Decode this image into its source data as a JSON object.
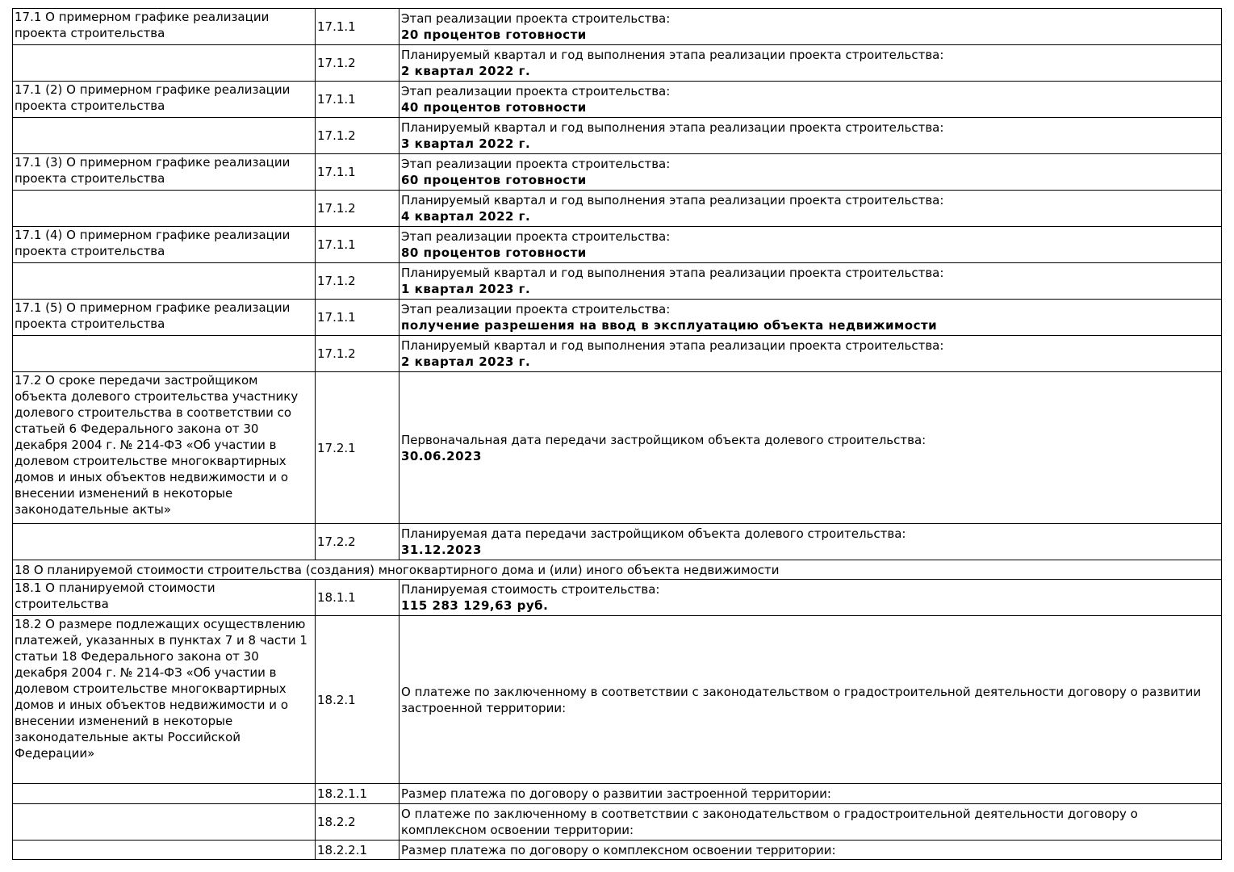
{
  "rows": [
    {
      "section": "17.1 О примерном графике реализации проекта строительства",
      "code": "17.1.1",
      "label": "Этап реализации проекта строительства:",
      "value": "20 процентов готовности"
    },
    {
      "section": "",
      "code": "17.1.2",
      "label": "Планируемый квартал и год выполнения этапа реализации проекта строительства:",
      "value": "2 квартал 2022 г."
    },
    {
      "section": "17.1 (2) О примерном графике реализации проекта строительства",
      "code": "17.1.1",
      "label": "Этап реализации проекта строительства:",
      "value": "40 процентов готовности"
    },
    {
      "section": "",
      "code": "17.1.2",
      "label": "Планируемый квартал и год выполнения этапа реализации проекта строительства:",
      "value": "3 квартал 2022 г."
    },
    {
      "section": "17.1 (3) О примерном графике реализации проекта строительства",
      "code": "17.1.1",
      "label": "Этап реализации проекта строительства:",
      "value": "60 процентов готовности"
    },
    {
      "section": "",
      "code": "17.1.2",
      "label": "Планируемый квартал и год выполнения этапа реализации проекта строительства:",
      "value": "4 квартал 2022 г."
    },
    {
      "section": "17.1 (4) О примерном графике реализации проекта строительства",
      "code": "17.1.1",
      "label": "Этап реализации проекта строительства:",
      "value": "80 процентов готовности"
    },
    {
      "section": "",
      "code": "17.1.2",
      "label": "Планируемый квартал и год выполнения этапа реализации проекта строительства:",
      "value": "1 квартал 2023 г."
    },
    {
      "section": "17.1 (5) О примерном графике реализации проекта строительства",
      "code": "17.1.1",
      "label": "Этап реализации проекта строительства:",
      "value": "получение разрешения на ввод в эксплуатацию объекта недвижимости"
    },
    {
      "section": "",
      "code": "17.1.2",
      "label": "Планируемый квартал и год выполнения этапа реализации проекта строительства:",
      "value": "2 квартал 2023 г."
    },
    {
      "section": "17.2 О сроке передачи застройщиком объекта долевого строительства участнику долевого строительства в соответствии со статьей 6 Федерального закона от 30 декабря 2004 г. № 214-ФЗ «Об участии в долевом строительстве многоквартирных домов и иных объектов недвижимости и о внесении изменений в некоторые законодательные акты»",
      "code": "17.2.1",
      "label": "Первоначальная дата передачи застройщиком объекта долевого строительства:",
      "value": "30.06.2023"
    },
    {
      "section": "",
      "code": "17.2.2",
      "label": "Планируемая дата передачи застройщиком объекта долевого строительства:",
      "value": "31.12.2023"
    }
  ],
  "section18": {
    "header": "18 О планируемой стоимости строительства (создания) многоквартирного дома и (или) иного объекта недвижимости",
    "rows": [
      {
        "section": "18.1 О планируемой стоимости строительства",
        "code": "18.1.1",
        "label": "Планируемая стоимость строительства:",
        "value": "115 283 129,63 руб."
      },
      {
        "section": "18.2 О размере подлежащих осуществлению платежей, указанных в пунктах 7 и 8 части 1 статьи 18 Федерального закона от 30 декабря 2004 г. № 214-ФЗ «Об участии в долевом строительстве многоквартирных домов и иных объектов недвижимости и о внесении изменений в некоторые законодательные акты Российской Федерации»",
        "code": "18.2.1",
        "label": "О платеже по заключенному в соответствии с законодательством о градостроительной деятельности договору о развитии застроенной территории:",
        "value": ""
      },
      {
        "section": "",
        "code": "18.2.1.1",
        "label": "Размер платежа по договору о развитии застроенной территории:",
        "value": ""
      },
      {
        "section": "",
        "code": "18.2.2",
        "label": "О платеже по заключенному в соответствии с законодательством о градостроительной деятельности договору о комплексном освоении территории:",
        "value": ""
      },
      {
        "section": "",
        "code": "18.2.2.1",
        "label": "Размер платежа по договору о комплексном освоении территории:",
        "value": ""
      }
    ]
  }
}
